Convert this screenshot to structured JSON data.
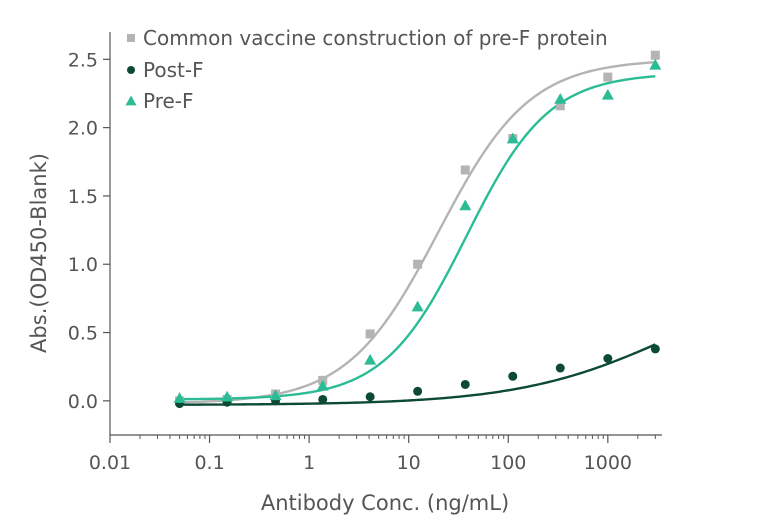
{
  "chart_data": {
    "type": "scatter",
    "xlabel": "Antibody Conc. (ng/mL)",
    "ylabel": "Abs.(OD450-Blank)",
    "x_scale": "log",
    "xlim": [
      0.01,
      3500
    ],
    "ylim": [
      -0.25,
      2.7
    ],
    "x_ticks": [
      0.01,
      0.1,
      1,
      10,
      100,
      1000
    ],
    "x_tick_labels": [
      "0.01",
      "0.1",
      "1",
      "10",
      "100",
      "1000"
    ],
    "y_ticks": [
      0,
      0.5,
      1,
      1.5,
      2,
      2.5
    ],
    "y_tick_labels": [
      "0.0",
      "0.5",
      "1.0",
      "1.5",
      "2.0",
      "2.5"
    ],
    "grid": false,
    "legend_position": "top-left",
    "series": [
      {
        "name": "Common vaccine construction of pre-F protein",
        "marker": "square",
        "color": "#b4b4b4",
        "x": [
          0.05,
          0.15,
          0.46,
          1.37,
          4.1,
          12.3,
          37,
          111,
          333,
          1000,
          3000
        ],
        "y": [
          0.0,
          0.01,
          0.05,
          0.15,
          0.49,
          1.0,
          1.69,
          1.92,
          2.16,
          2.37,
          2.53
        ],
        "fit": {
          "bottom": -0.02,
          "top": 2.5,
          "ec50": 20,
          "hill": 0.95
        }
      },
      {
        "name": "Post-F",
        "marker": "circle",
        "color": "#0d4a36",
        "x": [
          0.05,
          0.15,
          0.46,
          1.37,
          4.1,
          12.3,
          37,
          111,
          333,
          1000,
          3000
        ],
        "y": [
          -0.02,
          -0.01,
          0.0,
          0.01,
          0.03,
          0.07,
          0.12,
          0.18,
          0.24,
          0.31,
          0.38
        ],
        "fit": {
          "bottom": -0.03,
          "top": 1.0,
          "ec50": 5000,
          "hill": 0.55
        }
      },
      {
        "name": "Pre-F",
        "marker": "triangle",
        "color": "#2bbc96",
        "x": [
          0.05,
          0.15,
          0.46,
          1.37,
          4.1,
          12.3,
          37,
          111,
          333,
          1000,
          3000
        ],
        "y": [
          0.02,
          0.03,
          0.04,
          0.11,
          0.3,
          0.69,
          1.43,
          1.92,
          2.21,
          2.24,
          2.46
        ],
        "fit": {
          "bottom": 0.01,
          "top": 2.4,
          "ec50": 38,
          "hill": 1.05
        }
      }
    ]
  }
}
